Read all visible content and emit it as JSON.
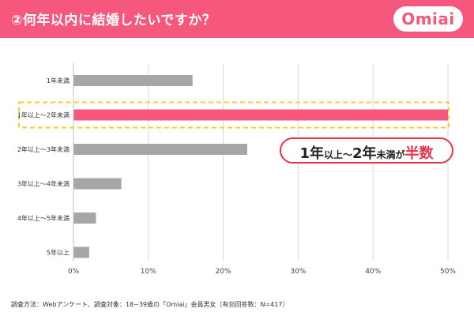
{
  "header": {
    "title": "②何年以内に結婚したいですか？",
    "logo": "Omiai"
  },
  "colors": {
    "brand": "#f6577c",
    "highlight_bar": "#f6577c",
    "normal_bar": "#a6a6a6",
    "highlight_border": "#f0d030",
    "callout_accent": "#e8324c"
  },
  "chart_data": {
    "type": "bar",
    "orientation": "horizontal",
    "categories": [
      "1年未満",
      "1年以上～2年未満",
      "2年以上～3年未満",
      "3年以上～4年未満",
      "4年以上～5年未満",
      "5年以上"
    ],
    "values": [
      15.9,
      50.0,
      23.2,
      6.4,
      3.0,
      2.1
    ],
    "unit": "%",
    "xlim": [
      0,
      50
    ],
    "ticks": [
      "0%",
      "10%",
      "20%",
      "30%",
      "40%",
      "50%"
    ],
    "tick_values": [
      0,
      10,
      20,
      30,
      40,
      50
    ],
    "highlight_index": 1,
    "grid": true
  },
  "callout": {
    "part1": "1年",
    "part2": "以上～",
    "part3": "2年",
    "part4": "未満が",
    "part5": "半数"
  },
  "footnote": "調査方法：Webアンケート、調査対象：18~39歳の「Omiai」会員男女（有効回答数：N=417）"
}
